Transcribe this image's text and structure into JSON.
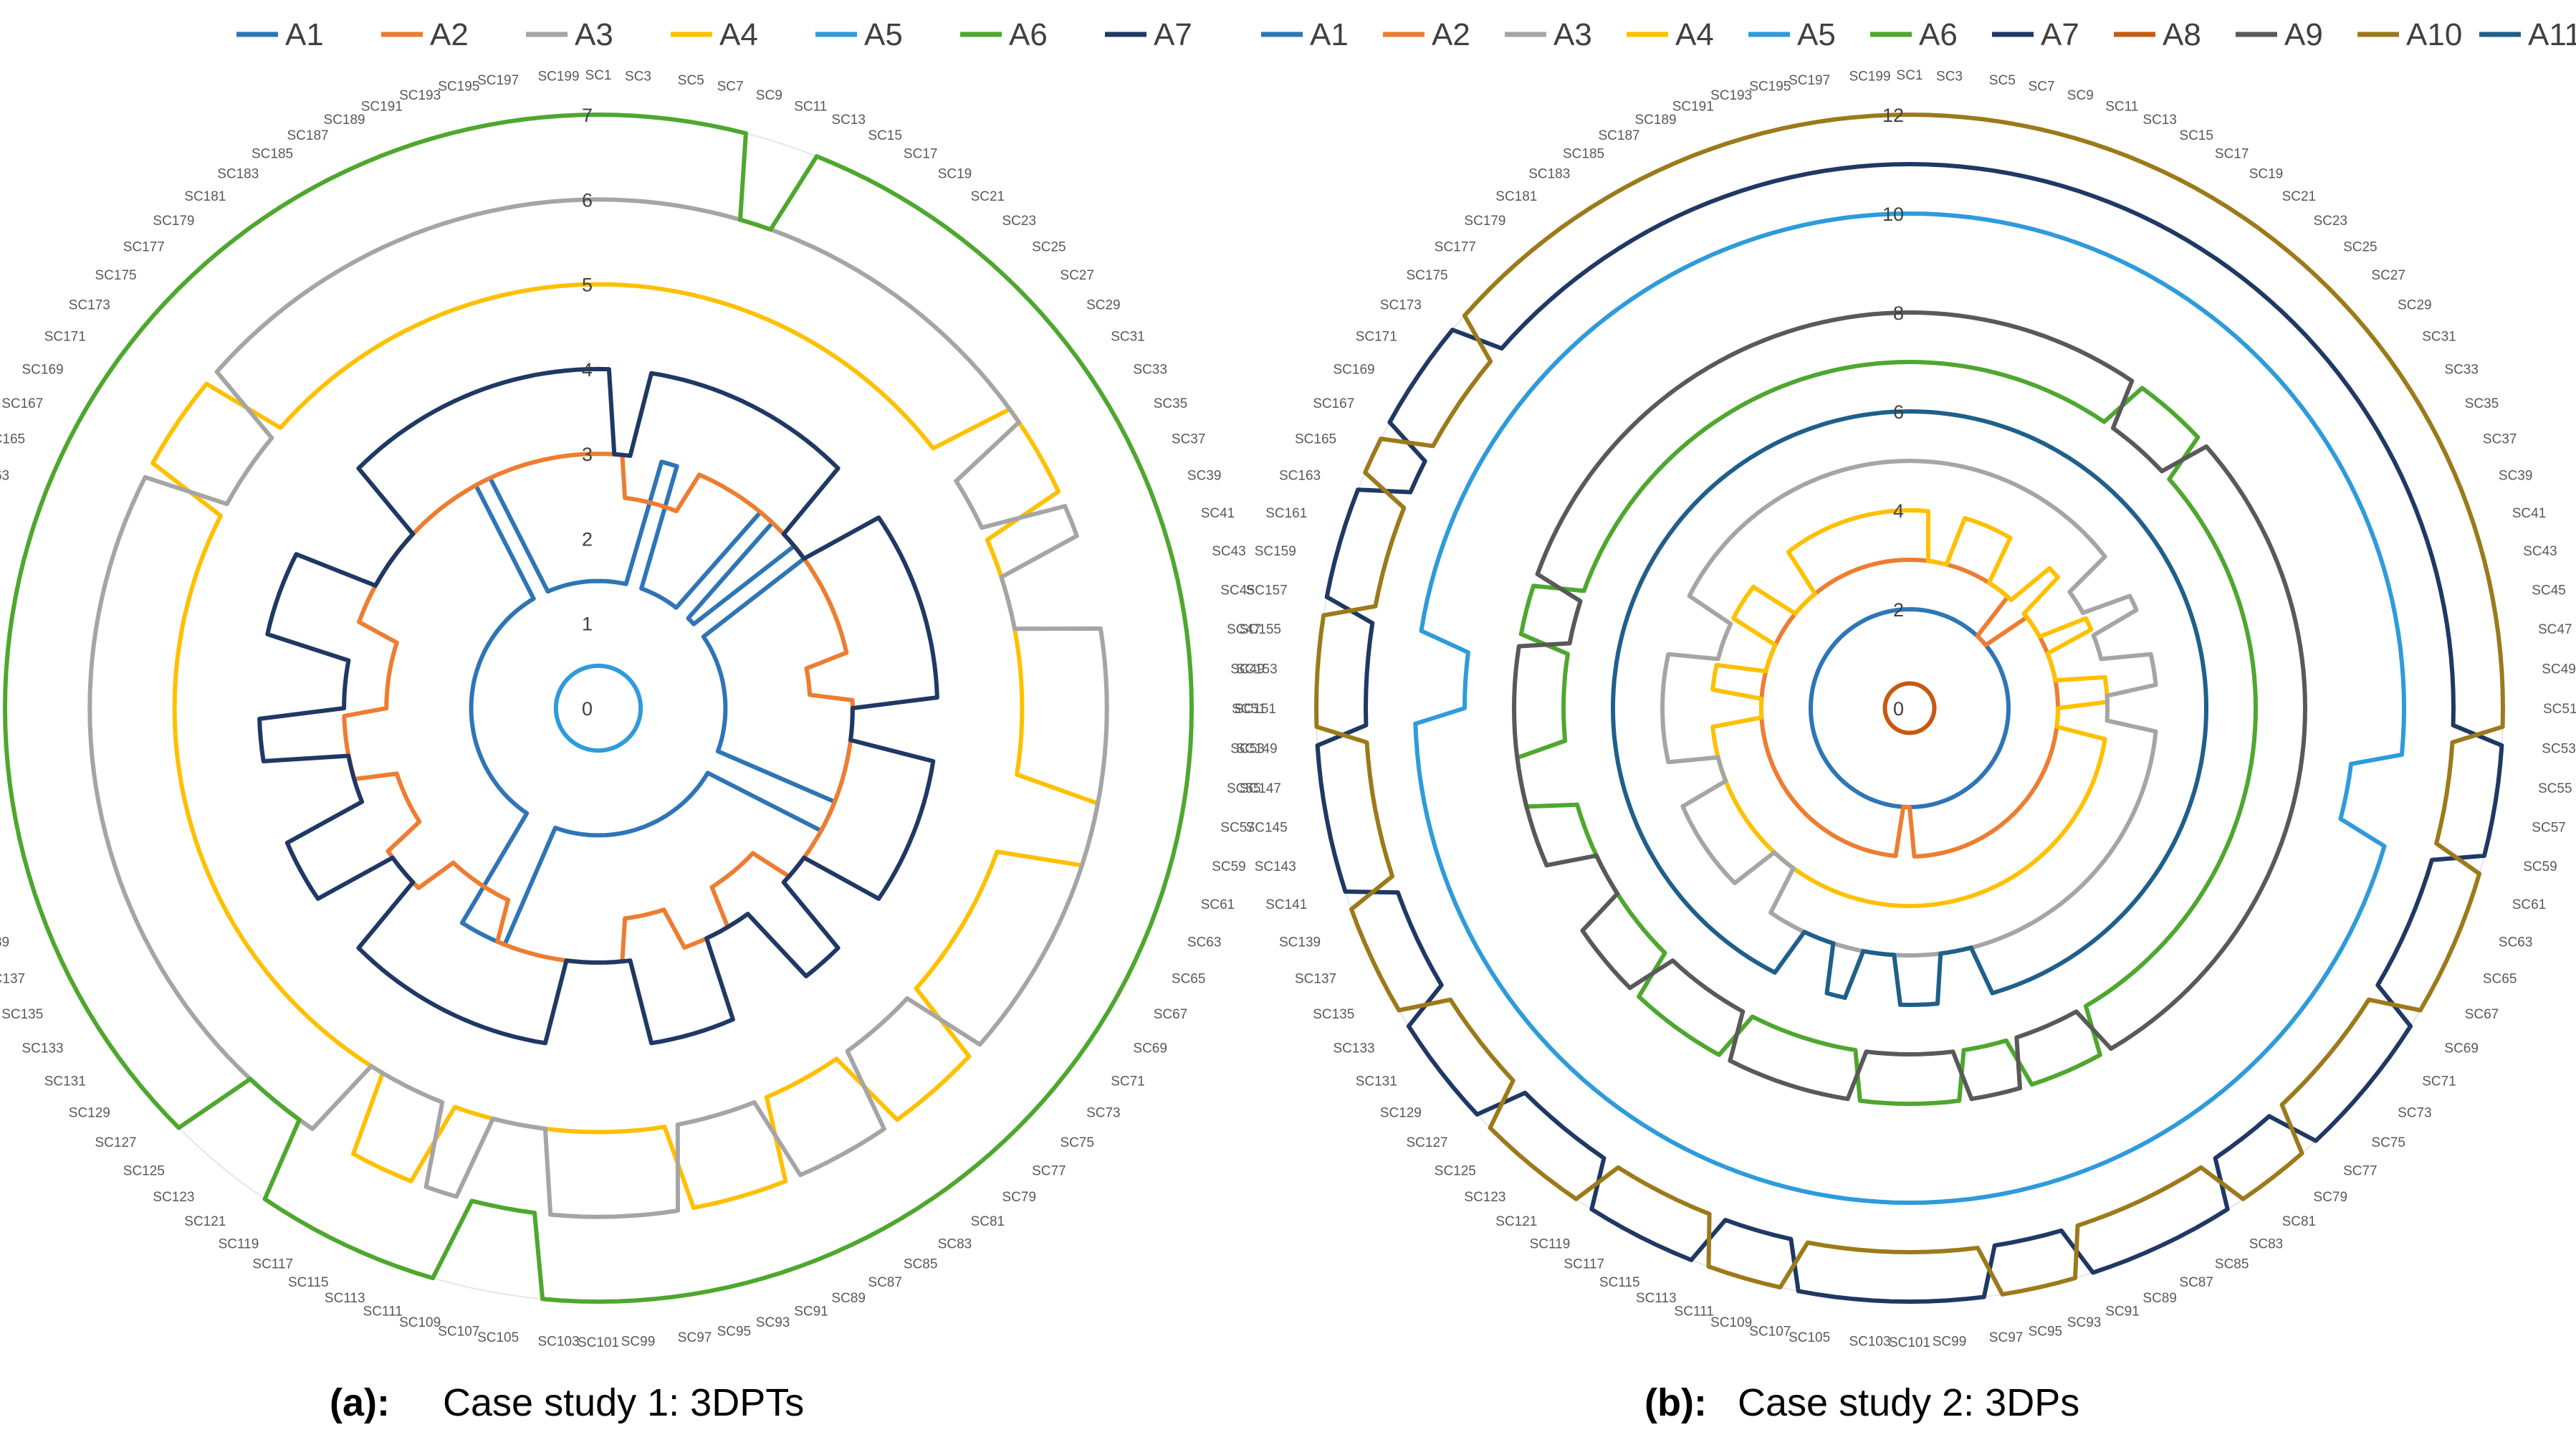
{
  "colors": {
    "A1": "#2E75B6",
    "A2": "#ED7D31",
    "A3": "#A5A5A5",
    "A4": "#FFC000",
    "A5": "#2E9BDA",
    "A6": "#4EA72E",
    "A7": "#1F3864",
    "A8": "#C55A11",
    "A9": "#595959",
    "A10": "#9C7A1A",
    "A11": "#1F5F8B"
  },
  "chart_data": [
    {
      "type": "radar",
      "panel_label": "(a):",
      "caption": "Case study 1: 3DPTs",
      "categories_rule": "SC1..SC200, every odd one labelled",
      "radial_range": [
        0,
        7
      ],
      "radial_ticks": [
        "0",
        "1",
        "2",
        "3",
        "4",
        "5",
        "6",
        "7"
      ],
      "legend": [
        "A1",
        "A2",
        "A3",
        "A4",
        "A5",
        "A6",
        "A7"
      ],
      "series": [
        {
          "name": "A5",
          "base": 0.5,
          "notes": "constant"
        },
        {
          "name": "A1",
          "base": 1.5,
          "alt": 3.0,
          "runs": [
            [
              8,
              10,
              "alt"
            ],
            [
              22,
              24,
              "alt"
            ],
            [
              28,
              30,
              "alt"
            ],
            [
              62,
              66,
              "alt"
            ],
            [
              112,
              118,
              "alt"
            ],
            [
              184,
              186,
              "alt"
            ]
          ]
        },
        {
          "name": "A2",
          "base": 3.0,
          "alt": 2.5,
          "runs": [
            [
              4,
              12,
              "alt"
            ],
            [
              44,
              48,
              "alt"
            ],
            [
              74,
              82,
              "alt"
            ],
            [
              90,
              96,
              "alt"
            ],
            [
              114,
              124,
              "alt"
            ],
            [
              132,
              140,
              "alt"
            ],
            [
              150,
              160,
              "alt"
            ]
          ]
        },
        {
          "name": "A7",
          "base": 4.0,
          "alt": 3.0,
          "runs": [
            [
              2,
              4,
              "alt"
            ],
            [
              26,
              30,
              "alt"
            ],
            [
              50,
              54,
              "alt"
            ],
            [
              70,
              74,
              "alt"
            ],
            [
              80,
              86,
              "alt"
            ],
            [
              96,
              104,
              "alt"
            ],
            [
              126,
              130,
              "alt"
            ],
            [
              138,
              144,
              "alt"
            ],
            [
              150,
              156,
              "alt"
            ],
            [
              166,
              174,
              "alt"
            ]
          ]
        },
        {
          "name": "A4",
          "base": 5.0,
          "alt": 6.0,
          "runs": [
            [
              30,
              36,
              "alt"
            ],
            [
              56,
              60,
              "alt"
            ],
            [
              74,
              80,
              "alt"
            ],
            [
              88,
              94,
              "alt"
            ],
            [
              112,
              116,
              "alt"
            ],
            [
              166,
              172,
              "alt"
            ]
          ]
        },
        {
          "name": "A3",
          "base": 6.0,
          "alt": 5.0,
          "runs": [
            [
              32,
              36,
              "alt"
            ],
            [
              40,
              44,
              "alt"
            ],
            [
              74,
              80,
              "alt"
            ],
            [
              88,
              94,
              "alt"
            ],
            [
              104,
              108,
              "alt"
            ],
            [
              112,
              118,
              "alt"
            ],
            [
              166,
              172,
              "alt"
            ]
          ]
        },
        {
          "name": "A6",
          "base": 7.0,
          "alt": 6.0,
          "runs": [
            [
              9,
              11,
              "alt"
            ],
            [
              104,
              108,
              "alt"
            ],
            [
              120,
              124,
              "alt"
            ]
          ]
        }
      ]
    },
    {
      "type": "radar",
      "panel_label": "(b):",
      "caption": "Case study 2: 3DPs",
      "categories_rule": "SC1..SC200, every odd one labelled",
      "radial_range": [
        0,
        12
      ],
      "radial_ticks": [
        "0",
        "2",
        "4",
        "6",
        "8",
        "10",
        "12"
      ],
      "legend": [
        "A1",
        "A2",
        "A3",
        "A4",
        "A5",
        "A6",
        "A7",
        "A8",
        "A9",
        "A10",
        "A11"
      ],
      "series": [
        {
          "name": "A8",
          "base": 0.5,
          "notes": "constant"
        },
        {
          "name": "A1",
          "base": 2.0,
          "notes": "constant"
        },
        {
          "name": "A2",
          "base": 3.0,
          "alt": 2.0,
          "runs": [
            [
              24,
              28,
              "alt"
            ],
            [
              100,
              102,
              "alt"
            ]
          ]
        },
        {
          "name": "A4",
          "base": 4.0,
          "alt": 3.0,
          "runs": [
            [
              4,
              8,
              "alt"
            ],
            [
              18,
              24,
              "alt"
            ],
            [
              28,
              34,
              "alt"
            ],
            [
              38,
              44,
              "alt"
            ],
            [
              50,
              54,
              "alt"
            ],
            [
              148,
              152,
              "alt"
            ],
            [
              158,
              164,
              "alt"
            ],
            [
              172,
              178,
              "alt"
            ]
          ]
        },
        {
          "name": "A3",
          "base": 5.0,
          "alt": 4.0,
          "runs": [
            [
              30,
              34,
              "alt"
            ],
            [
              38,
              42,
              "alt"
            ],
            [
              48,
              52,
              "alt"
            ],
            [
              120,
              124,
              "alt"
            ],
            [
              138,
              142,
              "alt"
            ],
            [
              158,
              164,
              "alt"
            ]
          ]
        },
        {
          "name": "A11",
          "base": 6.0,
          "alt": 5.0,
          "runs": [
            [
              92,
              96,
              "alt"
            ],
            [
              102,
              106,
              "alt"
            ],
            [
              110,
              114,
              "alt"
            ]
          ]
        },
        {
          "name": "A6",
          "base": 7.0,
          "alt": 8.0,
          "runs": [
            [
              20,
              26,
              "alt"
            ],
            [
              84,
              90,
              "alt"
            ],
            [
              96,
              104,
              "alt"
            ],
            [
              116,
              124,
              "alt"
            ],
            [
              142,
              146,
              "alt"
            ],
            [
              156,
              160,
              "alt"
            ]
          ]
        },
        {
          "name": "A9",
          "base": 8.0,
          "alt": 7.0,
          "runs": [
            [
              20,
              26,
              "alt"
            ],
            [
              84,
              90,
              "alt"
            ],
            [
              96,
              104,
              "alt"
            ],
            [
              116,
              124,
              "alt"
            ],
            [
              132,
              136,
              "alt"
            ],
            [
              156,
              160,
              "alt"
            ]
          ]
        },
        {
          "name": "A5",
          "base": 10.0,
          "alt": 9.0,
          "runs": [
            [
              54,
              58,
              "alt"
            ],
            [
              150,
              154,
              "alt"
            ]
          ]
        },
        {
          "name": "A7",
          "base": 11.0,
          "alt": 12.0,
          "runs": [
            [
              52,
              58,
              "alt"
            ],
            [
              68,
              76,
              "alt"
            ],
            [
              82,
              90,
              "alt"
            ],
            [
              96,
              106,
              "alt"
            ],
            [
              112,
              118,
              "alt"
            ],
            [
              126,
              132,
              "alt"
            ],
            [
              140,
              148,
              "alt"
            ],
            [
              156,
              162,
              "alt"
            ],
            [
              166,
              172,
              "alt"
            ]
          ]
        },
        {
          "name": "A10",
          "base": 12.0,
          "alt": 11.0,
          "runs": [
            [
              52,
              58,
              "alt"
            ],
            [
              68,
              76,
              "alt"
            ],
            [
              82,
              90,
              "alt"
            ],
            [
              96,
              106,
              "alt"
            ],
            [
              112,
              118,
              "alt"
            ],
            [
              126,
              132,
              "alt"
            ],
            [
              140,
              148,
              "alt"
            ],
            [
              156,
              162,
              "alt"
            ],
            [
              166,
              172,
              "alt"
            ]
          ]
        }
      ]
    }
  ]
}
